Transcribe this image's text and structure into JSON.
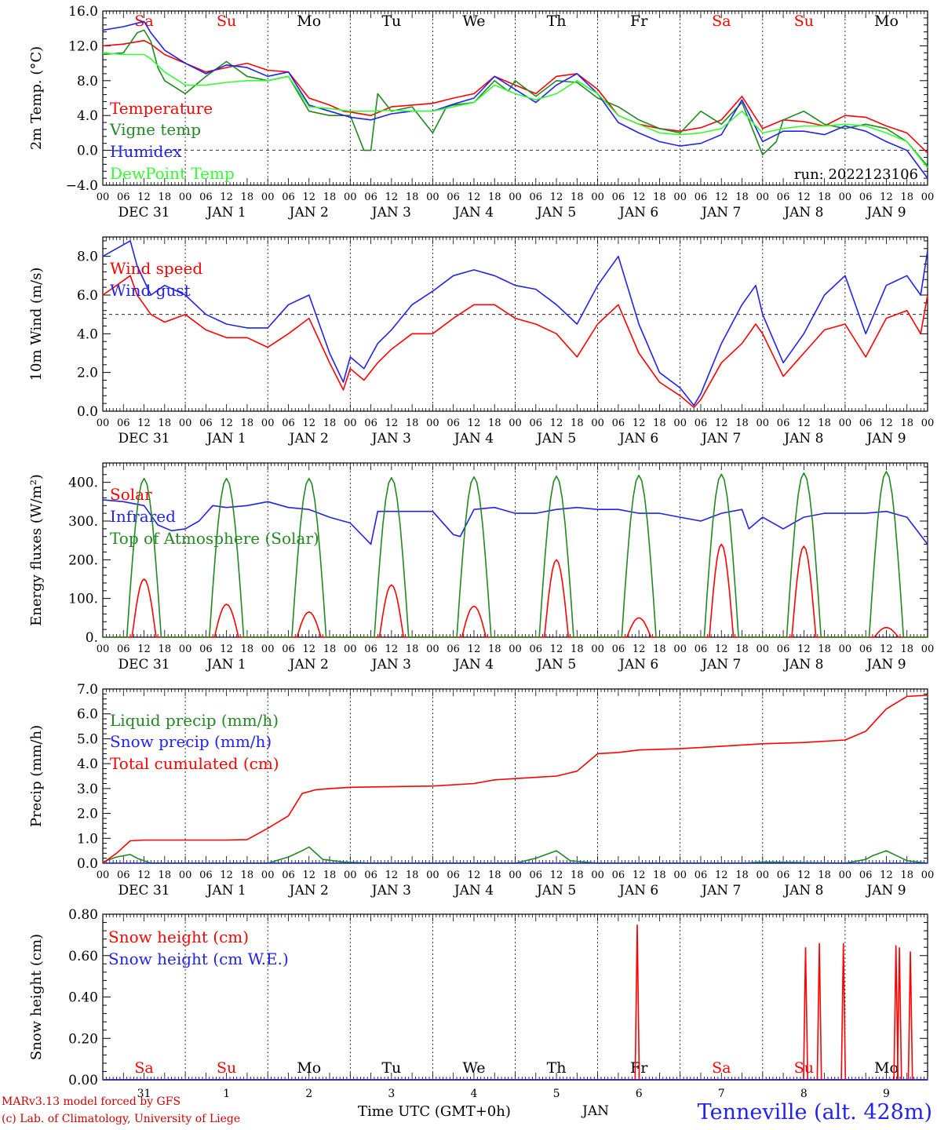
{
  "chart_data": [
    {
      "type": "line",
      "id": "temperature",
      "ylabel": "2m Temp. (°C)",
      "ylim": [
        -4,
        16
      ],
      "yticks": [
        -4,
        0,
        4,
        8,
        12,
        16
      ],
      "ytick_labels": [
        "−4.0",
        "0.0",
        "4.0",
        "8.0",
        "12.0",
        "16.0"
      ],
      "dashed_y": 0,
      "day_labels": [
        "Sa",
        "Su",
        "Mo",
        "Tu",
        "We",
        "Th",
        "Fr",
        "Sa",
        "Su",
        "Mo"
      ],
      "day_label_colors": [
        "#ff0000",
        "#ff0000",
        "#000000",
        "#000000",
        "#000000",
        "#000000",
        "#000000",
        "#ff0000",
        "#ff0000",
        "#000000"
      ],
      "annotation": "run: 2022123106",
      "series": [
        {
          "name": "Temperature",
          "color": "#ff0000",
          "x": [
            0,
            6,
            12,
            14,
            18,
            24,
            30,
            36,
            42,
            48,
            54,
            60,
            66,
            70,
            72,
            78,
            84,
            90,
            96,
            102,
            108,
            114,
            120,
            126,
            132,
            138,
            144,
            150,
            156,
            162,
            168,
            174,
            180,
            186,
            192,
            198,
            204,
            210,
            216,
            222,
            228,
            234,
            240
          ],
          "y": [
            12.0,
            12.2,
            12.6,
            12.2,
            11.0,
            10.0,
            9.0,
            9.5,
            10.0,
            9.2,
            9.0,
            6.0,
            5.2,
            4.5,
            4.4,
            4.0,
            5.0,
            5.2,
            5.4,
            6.0,
            6.5,
            8.5,
            7.5,
            6.5,
            8.5,
            8.8,
            7.0,
            4.0,
            3.0,
            2.5,
            2.2,
            2.6,
            3.5,
            6.2,
            2.5,
            3.5,
            3.3,
            2.8,
            4.0,
            3.8,
            2.8,
            2.0,
            -0.3
          ]
        },
        {
          "name": "Vigne temp",
          "color": "#228822",
          "x": [
            0,
            6,
            10,
            12,
            14,
            16,
            18,
            24,
            30,
            36,
            42,
            48,
            54,
            60,
            66,
            72,
            76,
            78,
            80,
            84,
            90,
            96,
            100,
            102,
            108,
            114,
            118,
            120,
            126,
            132,
            138,
            144,
            150,
            156,
            162,
            168,
            174,
            180,
            186,
            192,
            196,
            198,
            204,
            210,
            216,
            222,
            228,
            234,
            240
          ],
          "y": [
            11.0,
            11.2,
            13.5,
            13.8,
            12.5,
            9.5,
            8.0,
            6.5,
            8.5,
            10.2,
            8.5,
            8.0,
            8.5,
            4.5,
            4.0,
            4.0,
            0.0,
            0.0,
            6.5,
            4.5,
            5.0,
            2.0,
            5.0,
            5.2,
            5.5,
            8.0,
            6.8,
            8.0,
            6.2,
            8.0,
            7.8,
            6.0,
            5.0,
            3.5,
            2.5,
            2.0,
            4.5,
            3.0,
            5.5,
            -0.5,
            1.0,
            3.5,
            4.5,
            3.0,
            2.5,
            3.0,
            2.5,
            1.0,
            -1.8
          ]
        },
        {
          "name": "Humidex",
          "color": "#2222ee",
          "x": [
            0,
            6,
            12,
            14,
            18,
            24,
            30,
            36,
            42,
            48,
            54,
            60,
            66,
            72,
            78,
            84,
            90,
            96,
            102,
            108,
            114,
            120,
            126,
            132,
            138,
            144,
            150,
            156,
            162,
            168,
            174,
            180,
            186,
            192,
            198,
            204,
            210,
            216,
            222,
            228,
            234,
            240
          ],
          "y": [
            13.8,
            14.2,
            14.8,
            13.5,
            11.5,
            10.0,
            8.8,
            9.8,
            9.5,
            8.5,
            9.0,
            5.2,
            4.5,
            3.8,
            3.5,
            4.2,
            4.5,
            4.5,
            5.3,
            6.0,
            8.5,
            7.0,
            5.5,
            7.5,
            8.8,
            6.5,
            3.2,
            2.0,
            1.0,
            0.5,
            0.8,
            1.8,
            5.8,
            1.0,
            2.2,
            2.2,
            1.8,
            2.8,
            2.2,
            1.0,
            0.0,
            -3.2
          ]
        },
        {
          "name": "DewPoint Temp",
          "color": "#33ff33",
          "x": [
            0,
            6,
            12,
            14,
            18,
            24,
            30,
            36,
            42,
            48,
            54,
            60,
            66,
            72,
            78,
            84,
            90,
            96,
            102,
            108,
            114,
            120,
            126,
            132,
            138,
            144,
            150,
            156,
            162,
            168,
            174,
            180,
            186,
            192,
            198,
            204,
            210,
            216,
            222,
            228,
            234,
            240
          ],
          "y": [
            11.2,
            11.0,
            11.0,
            10.5,
            9.0,
            7.5,
            7.5,
            7.8,
            8.0,
            8.0,
            8.5,
            5.0,
            4.8,
            4.5,
            4.5,
            4.6,
            4.5,
            4.5,
            5.0,
            5.5,
            7.5,
            6.5,
            5.8,
            6.5,
            8.0,
            6.5,
            4.0,
            3.0,
            2.0,
            1.8,
            2.0,
            2.5,
            4.5,
            2.0,
            2.5,
            2.8,
            2.8,
            3.0,
            2.8,
            2.0,
            1.0,
            -2.0
          ]
        }
      ]
    },
    {
      "type": "line",
      "id": "wind",
      "ylabel": "10m Wind (m/s)",
      "ylim": [
        0,
        9
      ],
      "yticks": [
        0,
        2,
        4,
        6,
        8
      ],
      "ytick_labels": [
        "0.0",
        "2.0",
        "4.0",
        "6.0",
        "8.0"
      ],
      "dashed_y": 5,
      "series": [
        {
          "name": "Wind speed",
          "color": "#ff0000",
          "x": [
            0,
            4,
            8,
            10,
            14,
            18,
            24,
            30,
            36,
            42,
            48,
            54,
            60,
            66,
            70,
            72,
            76,
            80,
            84,
            90,
            96,
            102,
            108,
            114,
            120,
            126,
            132,
            138,
            144,
            150,
            156,
            162,
            168,
            172,
            174,
            180,
            186,
            190,
            192,
            198,
            204,
            210,
            216,
            222,
            228,
            234,
            238,
            240
          ],
          "y": [
            6.0,
            6.5,
            7.0,
            6.0,
            5.0,
            4.6,
            5.0,
            4.2,
            3.8,
            3.8,
            3.3,
            4.0,
            4.8,
            2.5,
            1.1,
            2.2,
            1.6,
            2.5,
            3.2,
            4.0,
            4.0,
            4.8,
            5.5,
            5.5,
            4.8,
            4.5,
            4.0,
            2.8,
            4.5,
            5.5,
            3.0,
            1.5,
            0.8,
            0.2,
            0.6,
            2.5,
            3.5,
            4.5,
            4.0,
            1.8,
            3.0,
            4.2,
            4.5,
            2.8,
            4.8,
            5.2,
            4.0,
            6.0
          ]
        },
        {
          "name": "Wind gust",
          "color": "#2222ee",
          "x": [
            0,
            4,
            8,
            10,
            14,
            18,
            24,
            30,
            36,
            42,
            48,
            54,
            60,
            66,
            70,
            72,
            76,
            80,
            84,
            90,
            96,
            102,
            108,
            114,
            120,
            126,
            132,
            138,
            144,
            150,
            156,
            162,
            168,
            172,
            174,
            180,
            186,
            190,
            192,
            198,
            204,
            210,
            216,
            222,
            228,
            234,
            238,
            240
          ],
          "y": [
            8.0,
            8.4,
            8.8,
            7.5,
            6.0,
            6.5,
            6.0,
            5.0,
            4.5,
            4.3,
            4.3,
            5.5,
            6.0,
            3.0,
            1.5,
            2.8,
            2.2,
            3.5,
            4.2,
            5.5,
            6.2,
            7.0,
            7.3,
            7.0,
            6.5,
            6.3,
            5.5,
            4.5,
            6.5,
            8.0,
            4.5,
            2.0,
            1.2,
            0.3,
            0.9,
            3.5,
            5.5,
            6.5,
            5.0,
            2.5,
            4.0,
            6.0,
            7.0,
            4.0,
            6.5,
            7.0,
            6.0,
            8.3
          ]
        }
      ]
    },
    {
      "type": "line",
      "id": "energy",
      "ylabel": "Energy fluxes (W/m²)",
      "ylim": [
        0,
        450
      ],
      "yticks": [
        0,
        100,
        200,
        300,
        400
      ],
      "ytick_labels": [
        "0.",
        "100.",
        "200.",
        "300.",
        "400."
      ],
      "series": [
        {
          "name": "Solar",
          "color": "#ff0000",
          "peak_hour": 12,
          "daily_peaks": [
            150,
            85,
            65,
            135,
            80,
            200,
            50,
            240,
            235,
            25
          ]
        },
        {
          "name": "Infrared",
          "color": "#2222ee",
          "x": [
            0,
            6,
            12,
            16,
            20,
            24,
            28,
            32,
            36,
            42,
            48,
            54,
            60,
            66,
            72,
            78,
            80,
            84,
            90,
            96,
            102,
            104,
            108,
            114,
            120,
            126,
            132,
            138,
            144,
            150,
            156,
            162,
            168,
            174,
            180,
            186,
            188,
            192,
            198,
            204,
            210,
            216,
            222,
            228,
            234,
            240
          ],
          "y": [
            355,
            350,
            340,
            290,
            275,
            280,
            300,
            340,
            335,
            340,
            350,
            335,
            330,
            310,
            295,
            240,
            325,
            325,
            325,
            325,
            265,
            260,
            330,
            335,
            320,
            320,
            330,
            335,
            330,
            330,
            320,
            320,
            310,
            300,
            320,
            330,
            280,
            310,
            280,
            310,
            320,
            320,
            320,
            325,
            310,
            240
          ]
        },
        {
          "name": "Top of Atmosphere (Solar)",
          "color": "#228822",
          "peak_hour": 12,
          "daily_peaks": [
            410,
            410,
            410,
            412,
            414,
            416,
            418,
            421,
            424,
            428
          ]
        }
      ]
    },
    {
      "type": "line",
      "id": "precip",
      "ylabel": "Precip (mm/h)",
      "ylim": [
        0,
        7
      ],
      "yticks": [
        0,
        1,
        2,
        3,
        4,
        5,
        6,
        7
      ],
      "ytick_labels": [
        "0.0",
        "1.0",
        "2.0",
        "3.0",
        "4.0",
        "5.0",
        "6.0",
        "7.0"
      ],
      "series": [
        {
          "name": "Liquid precip (mm/h)",
          "color": "#228822",
          "x": [
            0,
            4,
            8,
            10,
            14,
            24,
            48,
            54,
            58,
            60,
            64,
            70,
            78,
            120,
            126,
            128,
            132,
            136,
            144,
            186,
            192,
            216,
            222,
            224,
            228,
            234,
            240
          ],
          "y": [
            0.05,
            0.25,
            0.35,
            0.2,
            0.0,
            0.0,
            0.0,
            0.25,
            0.5,
            0.65,
            0.15,
            0.05,
            0.0,
            0.0,
            0.2,
            0.3,
            0.5,
            0.1,
            0.0,
            0.0,
            0.05,
            0.0,
            0.15,
            0.3,
            0.5,
            0.1,
            0.0
          ]
        },
        {
          "name": "Snow precip (mm/h)",
          "color": "#2222ee",
          "x": [
            0,
            240
          ],
          "y": [
            0.0,
            0.0
          ]
        },
        {
          "name": "Total cumulated (cm)",
          "color": "#ff0000",
          "x": [
            0,
            4,
            8,
            12,
            24,
            36,
            42,
            48,
            54,
            58,
            62,
            66,
            72,
            96,
            108,
            114,
            120,
            126,
            132,
            138,
            144,
            150,
            156,
            168,
            192,
            204,
            216,
            222,
            228,
            234,
            240
          ],
          "y": [
            0.0,
            0.4,
            0.9,
            0.93,
            0.93,
            0.93,
            0.95,
            1.4,
            1.9,
            2.8,
            2.95,
            3.0,
            3.05,
            3.1,
            3.2,
            3.35,
            3.4,
            3.45,
            3.5,
            3.7,
            4.4,
            4.45,
            4.55,
            4.6,
            4.8,
            4.85,
            4.95,
            5.3,
            6.2,
            6.7,
            6.75
          ]
        }
      ]
    },
    {
      "type": "line",
      "id": "snow",
      "ylabel": "Snow height (cm)",
      "ylim": [
        0,
        0.8
      ],
      "yticks": [
        0,
        0.2,
        0.4,
        0.6,
        0.8
      ],
      "ytick_labels": [
        "0.00",
        "0.20",
        "0.40",
        "0.60",
        "0.80"
      ],
      "day_labels": [
        "Sa",
        "Su",
        "Mo",
        "Tu",
        "We",
        "Th",
        "Fr",
        "Sa",
        "Su",
        "Mo"
      ],
      "day_label_colors": [
        "#ff0000",
        "#ff0000",
        "#000000",
        "#000000",
        "#000000",
        "#000000",
        "#000000",
        "#ff0000",
        "#ff0000",
        "#000000"
      ],
      "date_numbers": [
        "31",
        "1",
        "2",
        "3",
        "4",
        "5",
        "6",
        "7",
        "8",
        "9"
      ],
      "series": [
        {
          "name": "Snow height (cm)",
          "color": "#ff0000",
          "spikes": [
            {
              "x": 155.5,
              "y": 0.75
            },
            {
              "x": 204.5,
              "y": 0.64
            },
            {
              "x": 208.5,
              "y": 0.66
            },
            {
              "x": 215.5,
              "y": 0.66
            },
            {
              "x": 230.8,
              "y": 0.65
            },
            {
              "x": 231.8,
              "y": 0.64
            },
            {
              "x": 235,
              "y": 0.62
            }
          ]
        },
        {
          "name": "Snow height (cm W.E.)",
          "color": "#2222ee",
          "x": [
            0,
            240
          ],
          "y": [
            0.0,
            0.0
          ]
        }
      ]
    }
  ],
  "x_axis": {
    "hour_labels": [
      "00",
      "06",
      "12",
      "18"
    ],
    "end_label": "00",
    "date_labels": [
      "DEC 31",
      "JAN 1",
      "JAN 2",
      "JAN 3",
      "JAN 4",
      "JAN 5",
      "JAN 6",
      "JAN 7",
      "JAN 8",
      "JAN 9"
    ],
    "xlim_hours": [
      0,
      240
    ],
    "title": "Time UTC (GMT+0h)",
    "month": "JAN"
  },
  "footer": {
    "model": "MARv3.13 model forced by GFS",
    "credit": "(c) Lab. of Climatology, University of Liege",
    "station": "Tenneville (alt. 428m)"
  },
  "colors": {
    "red": "#ff0000",
    "green": "#228822",
    "blue": "#2222ee",
    "lightgreen": "#33ff33"
  }
}
